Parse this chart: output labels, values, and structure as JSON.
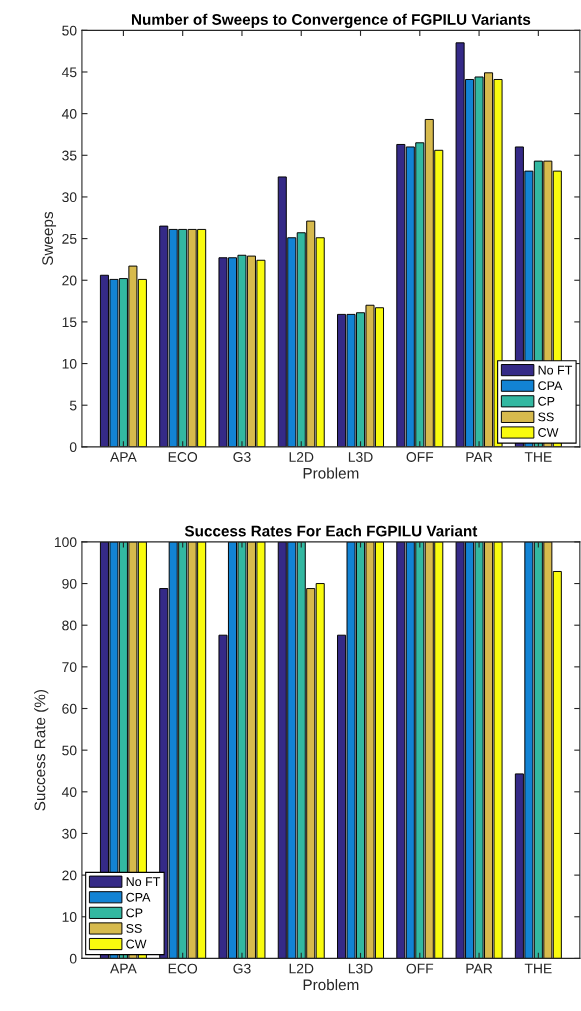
{
  "chart_data": [
    {
      "type": "bar",
      "title": "Number of Sweeps to Convergence of FGPILU Variants",
      "xlabel": "Problem",
      "ylabel": "Sweeps",
      "categories": [
        "APA",
        "ECO",
        "G3",
        "L2D",
        "L3D",
        "OFF",
        "PAR",
        "THE"
      ],
      "series": [
        {
          "name": "No FT",
          "color": "#352a87",
          "values": [
            20.6,
            26.5,
            22.7,
            32.4,
            15.9,
            36.3,
            48.5,
            36.0
          ]
        },
        {
          "name": "CPA",
          "color": "#1283d4",
          "values": [
            20.1,
            26.1,
            22.7,
            25.1,
            15.9,
            36.0,
            44.1,
            33.1
          ]
        },
        {
          "name": "CP",
          "color": "#33b8a1",
          "values": [
            20.2,
            26.1,
            23.0,
            25.7,
            16.1,
            36.5,
            44.4,
            34.3
          ]
        },
        {
          "name": "SS",
          "color": "#d7ba4d",
          "values": [
            21.7,
            26.1,
            22.9,
            27.1,
            17.0,
            39.3,
            44.9,
            34.3
          ]
        },
        {
          "name": "CW",
          "color": "#f9fb0e",
          "values": [
            20.1,
            26.1,
            22.4,
            25.1,
            16.7,
            35.6,
            44.1,
            33.1
          ]
        }
      ],
      "ylim": [
        0,
        50
      ],
      "yticks": [
        0,
        5,
        10,
        15,
        20,
        25,
        30,
        35,
        40,
        45,
        50
      ],
      "legend": "bottom right",
      "grid": false
    },
    {
      "type": "bar",
      "title": "Success Rates For Each FGPILU Variant",
      "xlabel": "Problem",
      "ylabel": "Success Rate (%)",
      "categories": [
        "APA",
        "ECO",
        "G3",
        "L2D",
        "L3D",
        "OFF",
        "PAR",
        "THE"
      ],
      "series": [
        {
          "name": "No FT",
          "color": "#352a87",
          "values": [
            100,
            88.8,
            77.6,
            100,
            77.6,
            100,
            100,
            44.3
          ]
        },
        {
          "name": "CPA",
          "color": "#1283d4",
          "values": [
            100,
            100,
            100,
            100,
            100,
            100,
            100,
            100
          ]
        },
        {
          "name": "CP",
          "color": "#33b8a1",
          "values": [
            100,
            100,
            100,
            100,
            100,
            100,
            100,
            100
          ]
        },
        {
          "name": "SS",
          "color": "#d7ba4d",
          "values": [
            100,
            100,
            100,
            88.8,
            100,
            100,
            100,
            100
          ]
        },
        {
          "name": "CW",
          "color": "#f9fb0e",
          "values": [
            100,
            100,
            100,
            90.0,
            100,
            100,
            100,
            92.9
          ]
        }
      ],
      "ylim": [
        0,
        100
      ],
      "yticks": [
        0,
        10,
        20,
        30,
        40,
        50,
        60,
        70,
        80,
        90,
        100
      ],
      "legend": "bottom left",
      "grid": false
    }
  ]
}
